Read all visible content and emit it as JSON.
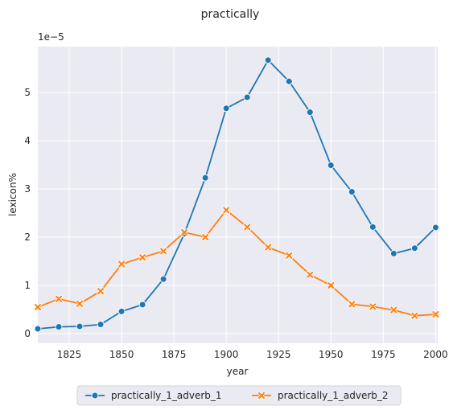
{
  "chart_data": {
    "type": "line",
    "title": "practically",
    "xlabel": "year",
    "ylabel": "lexicon%",
    "y_scale_label": "1e−5",
    "xlim": [
      1810,
      2001
    ],
    "ylim": [
      -0.2,
      5.95
    ],
    "x_ticks": [
      1825,
      1850,
      1875,
      1900,
      1925,
      1950,
      1975,
      2000
    ],
    "y_ticks": [
      0,
      1,
      2,
      3,
      4,
      5
    ],
    "grid": true,
    "legend_position": "bottom-center",
    "x": [
      1810,
      1820,
      1830,
      1840,
      1850,
      1860,
      1870,
      1880,
      1890,
      1900,
      1910,
      1920,
      1930,
      1940,
      1950,
      1960,
      1970,
      1980,
      1990,
      2000
    ],
    "series": [
      {
        "name": "practically_1_adverb_1",
        "color": "#1f77b4",
        "marker": "circle",
        "values": [
          0.1,
          0.14,
          0.15,
          0.19,
          0.46,
          0.6,
          1.13,
          2.07,
          3.23,
          4.67,
          4.9,
          5.67,
          5.23,
          4.59,
          3.49,
          2.94,
          2.21,
          1.66,
          1.77,
          2.2
        ]
      },
      {
        "name": "practically_1_adverb_2",
        "color": "#ff7f0e",
        "marker": "x",
        "values": [
          0.55,
          0.72,
          0.62,
          0.88,
          1.44,
          1.58,
          1.71,
          2.1,
          2.0,
          2.56,
          2.21,
          1.79,
          1.62,
          1.22,
          1.0,
          0.61,
          0.56,
          0.49,
          0.37,
          0.4
        ]
      }
    ]
  }
}
